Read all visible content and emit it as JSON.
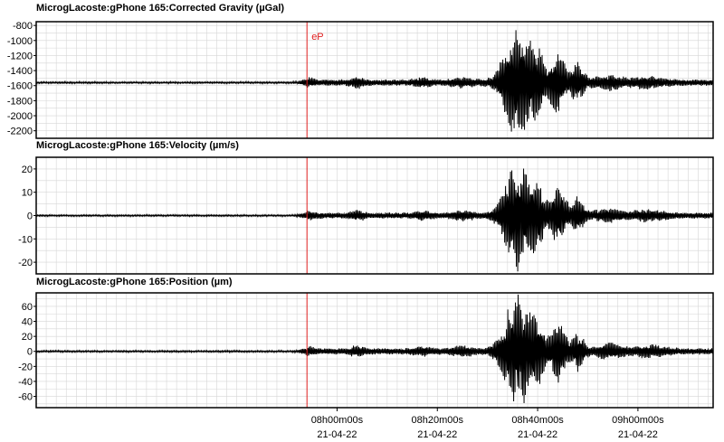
{
  "chart_data": [
    {
      "type": "line",
      "title": "MicrogLacoste:gPhone 165:Corrected Gravity (µGal)",
      "ylim": [
        -2300,
        -750
      ],
      "yticks": [
        -800,
        -1000,
        -1200,
        -1400,
        -1600,
        -1800,
        -2000,
        -2200
      ],
      "baseline": -1560,
      "peak_amplitude": 720,
      "event_marker": "eP"
    },
    {
      "type": "line",
      "title": "MicrogLacoste:gPhone 165:Velocity (µm/s)",
      "ylim": [
        -25,
        25
      ],
      "yticks": [
        20,
        10,
        0,
        -10,
        -20
      ],
      "baseline": 0,
      "peak_amplitude": 22
    },
    {
      "type": "line",
      "title": "MicrogLacoste:gPhone 165:Position (µm)",
      "ylim": [
        -75,
        78
      ],
      "yticks": [
        60,
        40,
        20,
        0,
        -20,
        -40,
        -60
      ],
      "baseline": 0,
      "peak_amplitude": 72
    }
  ],
  "time_axis": {
    "start_min": -60,
    "end_min": 75,
    "tick_minutes": [
      0,
      20,
      40,
      60
    ],
    "tick_labels": [
      "08h00m00s",
      "08h20m00s",
      "08h40m00s",
      "09h00m00s"
    ],
    "date_labels": [
      "21-04-22",
      "21-04-22",
      "21-04-22",
      "21-04-22"
    ]
  },
  "event_time_min": -6,
  "colors": {
    "trace": "#000000",
    "marker": "#e02020",
    "grid": "#d6d6d6",
    "frame": "#000000"
  }
}
